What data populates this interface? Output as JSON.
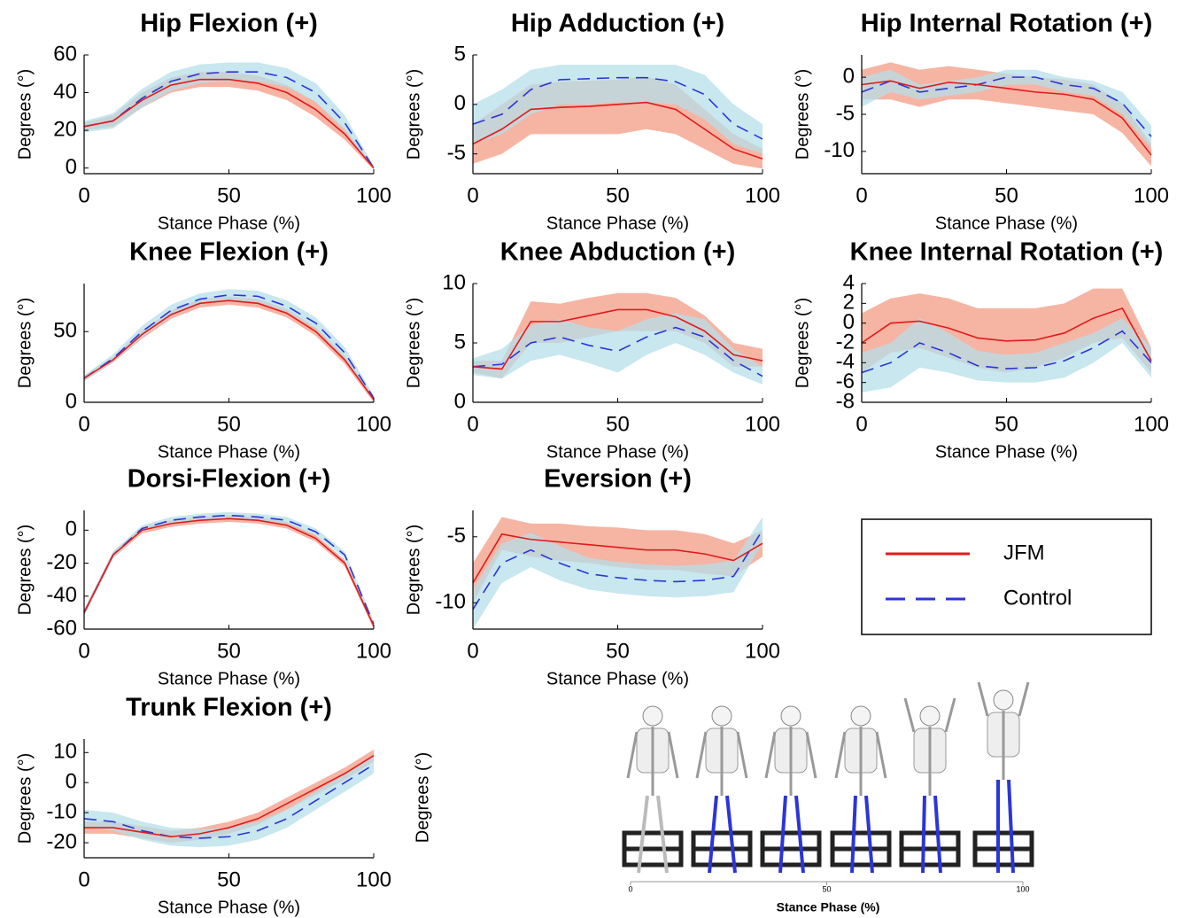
{
  "chart_data": [
    {
      "type": "line",
      "title": "Hip Flexion (+)",
      "xlabel": "Stance Phase (%)",
      "ylabel": "Degrees (°)",
      "x": [
        0,
        10,
        20,
        30,
        40,
        50,
        60,
        70,
        80,
        90,
        100
      ],
      "xlim": [
        0,
        100
      ],
      "xticks": [
        0,
        50,
        100
      ],
      "ylim": [
        -3,
        60
      ],
      "yticks": [
        0,
        20,
        40,
        60
      ],
      "series": [
        {
          "name": "JFM",
          "color": "#e01b1b",
          "band_color": "#f4a793",
          "style": "solid",
          "values": [
            22,
            25,
            36,
            44,
            47,
            47,
            45,
            40,
            31,
            18,
            0
          ],
          "lower": [
            20,
            22,
            32,
            40,
            43,
            43,
            41,
            36,
            27,
            15,
            -1
          ],
          "upper": [
            24,
            28,
            40,
            48,
            51,
            51,
            49,
            44,
            35,
            21,
            1
          ]
        },
        {
          "name": "Control",
          "color": "#2b35d8",
          "band_color": "#b5dfe9",
          "style": "dashed",
          "values": [
            22,
            25,
            37,
            46,
            50,
            51,
            51,
            48,
            40,
            24,
            0
          ],
          "lower": [
            19,
            21,
            32,
            41,
            45,
            46,
            46,
            43,
            35,
            20,
            -1
          ],
          "upper": [
            25,
            29,
            42,
            51,
            55,
            56,
            56,
            53,
            45,
            28,
            1
          ]
        }
      ]
    },
    {
      "type": "line",
      "title": "Hip Adduction (+)",
      "xlabel": "Stance Phase (%)",
      "ylabel": "Degrees (°)",
      "x": [
        0,
        10,
        20,
        30,
        40,
        50,
        60,
        70,
        80,
        90,
        100
      ],
      "xlim": [
        0,
        100
      ],
      "xticks": [
        0,
        50,
        100
      ],
      "ylim": [
        -7,
        5
      ],
      "yticks": [
        -5,
        0,
        5
      ],
      "series": [
        {
          "name": "JFM",
          "color": "#e01b1b",
          "band_color": "#f4a793",
          "style": "solid",
          "values": [
            -4,
            -2.5,
            -0.5,
            -0.3,
            -0.2,
            0,
            0.2,
            -0.5,
            -2.5,
            -4.5,
            -5.5
          ],
          "lower": [
            -6,
            -5,
            -3,
            -3,
            -3,
            -3,
            -2.5,
            -3,
            -4.5,
            -6,
            -6.5
          ],
          "upper": [
            -2,
            0,
            2,
            2.3,
            2.4,
            2.5,
            2.8,
            2,
            -0.5,
            -3,
            -4.5
          ]
        },
        {
          "name": "Control",
          "color": "#2b35d8",
          "band_color": "#b5dfe9",
          "style": "dashed",
          "values": [
            -2,
            -1,
            1.5,
            2.5,
            2.6,
            2.7,
            2.7,
            2.3,
            1,
            -2,
            -3.5
          ],
          "lower": [
            -4,
            -3,
            -1,
            0,
            0,
            0.2,
            0.2,
            0,
            -1.5,
            -4,
            -5
          ],
          "upper": [
            0,
            1.5,
            3.5,
            4,
            4,
            4,
            4,
            4,
            3,
            0,
            -2
          ]
        }
      ]
    },
    {
      "type": "line",
      "title": "Hip Internal Rotation (+)",
      "xlabel": "Stance Phase (%)",
      "ylabel": "Degrees (°)",
      "x": [
        0,
        10,
        20,
        30,
        40,
        50,
        60,
        70,
        80,
        90,
        100
      ],
      "xlim": [
        0,
        100
      ],
      "xticks": [
        0,
        50,
        100
      ],
      "ylim": [
        -13,
        3
      ],
      "yticks": [
        -10,
        -5,
        0
      ],
      "series": [
        {
          "name": "JFM",
          "color": "#e01b1b",
          "band_color": "#f4a793",
          "style": "solid",
          "values": [
            -1,
            -0.5,
            -1.5,
            -0.7,
            -1,
            -1.5,
            -2,
            -2.3,
            -3,
            -5.5,
            -10.5
          ],
          "lower": [
            -3,
            -3,
            -4,
            -3,
            -3,
            -3.5,
            -4,
            -4.5,
            -5,
            -7.5,
            -12
          ],
          "upper": [
            1,
            2,
            1,
            1.5,
            1,
            0.5,
            0,
            -0.3,
            -1,
            -3.5,
            -9
          ]
        },
        {
          "name": "Control",
          "color": "#2b35d8",
          "band_color": "#b5dfe9",
          "style": "dashed",
          "values": [
            -2,
            -0.5,
            -2,
            -1.5,
            -1,
            0,
            0,
            -1,
            -1.5,
            -3.5,
            -8
          ],
          "lower": [
            -4,
            -2,
            -3,
            -2.5,
            -2,
            -1,
            -1,
            -2,
            -2.5,
            -5,
            -9.5
          ],
          "upper": [
            0,
            1,
            -1,
            -0.5,
            0,
            1,
            1,
            0,
            -0.5,
            -2,
            -6.5
          ]
        }
      ]
    },
    {
      "type": "line",
      "title": "Knee Flexion (+)",
      "xlabel": "Stance Phase (%)",
      "ylabel": "Degrees (°)",
      "x": [
        0,
        10,
        20,
        30,
        40,
        50,
        60,
        70,
        80,
        90,
        100
      ],
      "xlim": [
        0,
        100
      ],
      "xticks": [
        0,
        50,
        100
      ],
      "ylim": [
        0,
        84
      ],
      "yticks": [
        0,
        50
      ],
      "series": [
        {
          "name": "JFM",
          "color": "#e01b1b",
          "band_color": "#f4a793",
          "style": "solid",
          "values": [
            17,
            30,
            48,
            62,
            70,
            72,
            70,
            63,
            50,
            30,
            2
          ],
          "lower": [
            15,
            28,
            45,
            59,
            67,
            69,
            67,
            60,
            47,
            27,
            0
          ],
          "upper": [
            19,
            32,
            51,
            65,
            73,
            75,
            73,
            66,
            53,
            33,
            4
          ]
        },
        {
          "name": "Control",
          "color": "#2b35d8",
          "band_color": "#b5dfe9",
          "style": "dashed",
          "values": [
            17,
            31,
            50,
            65,
            73,
            76,
            75,
            68,
            56,
            35,
            3
          ],
          "lower": [
            15,
            28,
            46,
            61,
            69,
            72,
            71,
            64,
            52,
            31,
            1
          ],
          "upper": [
            19,
            34,
            54,
            69,
            77,
            80,
            79,
            72,
            60,
            39,
            5
          ]
        }
      ]
    },
    {
      "type": "line",
      "title": "Knee Abduction (+)",
      "xlabel": "Stance Phase (%)",
      "ylabel": "Degrees (°)",
      "x": [
        0,
        10,
        20,
        30,
        40,
        50,
        60,
        70,
        80,
        90,
        100
      ],
      "xlim": [
        0,
        100
      ],
      "xticks": [
        0,
        50,
        100
      ],
      "ylim": [
        0,
        10
      ],
      "yticks": [
        0,
        5,
        10
      ],
      "series": [
        {
          "name": "JFM",
          "color": "#e01b1b",
          "band_color": "#f4a793",
          "style": "solid",
          "values": [
            3,
            2.8,
            6.8,
            6.8,
            7.3,
            7.8,
            7.8,
            7.2,
            6,
            4,
            3.5
          ],
          "lower": [
            2.5,
            2,
            5,
            5,
            5.5,
            6,
            6,
            6,
            5,
            3,
            3
          ],
          "upper": [
            3.5,
            3.5,
            8.5,
            8.3,
            8.8,
            9.2,
            9.2,
            8.8,
            7.3,
            5,
            4.5
          ]
        },
        {
          "name": "Control",
          "color": "#2b35d8",
          "band_color": "#b5dfe9",
          "style": "dashed",
          "values": [
            3,
            3.2,
            5,
            5.5,
            4.8,
            4.3,
            5.5,
            6.3,
            5.5,
            3.5,
            2.2
          ],
          "lower": [
            2.3,
            2,
            3.5,
            4,
            3.3,
            2.5,
            4,
            5,
            4,
            2.5,
            1.5
          ],
          "upper": [
            3.7,
            4.5,
            6.5,
            7,
            6.3,
            6,
            7,
            7.5,
            7,
            4.5,
            3
          ]
        }
      ]
    },
    {
      "type": "line",
      "title": "Knee Internal Rotation (+)",
      "xlabel": "Stance Phase (%)",
      "ylabel": "Degrees (°)",
      "x": [
        0,
        10,
        20,
        30,
        40,
        50,
        60,
        70,
        80,
        90,
        100
      ],
      "xlim": [
        0,
        100
      ],
      "xticks": [
        0,
        50,
        100
      ],
      "ylim": [
        -8,
        4
      ],
      "yticks": [
        -8,
        -6,
        -4,
        -2,
        0,
        2,
        4
      ],
      "series": [
        {
          "name": "JFM",
          "color": "#e01b1b",
          "band_color": "#f4a793",
          "style": "solid",
          "values": [
            -2,
            0,
            0.2,
            -0.5,
            -1.5,
            -1.8,
            -1.7,
            -1,
            0.5,
            1.5,
            -3.8
          ],
          "lower": [
            -5,
            -3,
            -2.5,
            -3.5,
            -4.5,
            -5,
            -4.5,
            -3.5,
            -2,
            -1.5,
            -5
          ],
          "upper": [
            1,
            2.5,
            3,
            2.5,
            1.5,
            1.5,
            1.5,
            2,
            3.5,
            3.5,
            -2.5
          ]
        },
        {
          "name": "Control",
          "color": "#2b35d8",
          "band_color": "#b5dfe9",
          "style": "dashed",
          "values": [
            -5,
            -4,
            -2,
            -3,
            -4.3,
            -4.6,
            -4.5,
            -3.8,
            -2.5,
            -0.8,
            -4
          ],
          "lower": [
            -7,
            -6.5,
            -4.5,
            -5,
            -5.8,
            -6,
            -6,
            -5.5,
            -4,
            -2,
            -5.5
          ],
          "upper": [
            -3,
            -2,
            0.5,
            -1,
            -2.8,
            -3.2,
            -3,
            -2,
            -1,
            0.5,
            -2.5
          ]
        }
      ]
    },
    {
      "type": "line",
      "title": "Dorsi-Flexion (+)",
      "xlabel": "Stance Phase (%)",
      "ylabel": "Degrees (°)",
      "x": [
        0,
        10,
        20,
        30,
        40,
        50,
        60,
        70,
        80,
        90,
        100
      ],
      "xlim": [
        0,
        100
      ],
      "xticks": [
        0,
        50,
        100
      ],
      "ylim": [
        -60,
        12
      ],
      "yticks": [
        -60,
        -40,
        -20,
        0
      ],
      "series": [
        {
          "name": "JFM",
          "color": "#e01b1b",
          "band_color": "#f4a793",
          "style": "solid",
          "values": [
            -50,
            -15,
            0,
            4,
            6,
            7,
            6,
            3,
            -5,
            -20,
            -58
          ],
          "lower": [
            -52,
            -17,
            -2,
            2,
            4,
            5,
            4,
            1,
            -7,
            -22,
            -60
          ],
          "upper": [
            -48,
            -13,
            2,
            6,
            8,
            9,
            8,
            5,
            -3,
            -18,
            -56
          ]
        },
        {
          "name": "Control",
          "color": "#2b35d8",
          "band_color": "#b5dfe9",
          "style": "dashed",
          "values": [
            -50,
            -15,
            1,
            6,
            8,
            9,
            8,
            6,
            -1,
            -15,
            -57
          ],
          "lower": [
            -52,
            -17,
            -1,
            4,
            6,
            7,
            6,
            4,
            -3,
            -17,
            -59
          ],
          "upper": [
            -48,
            -13,
            3,
            8,
            10,
            11,
            10,
            8,
            1,
            -13,
            -55
          ]
        }
      ]
    },
    {
      "type": "line",
      "title": "Eversion (+)",
      "xlabel": "Stance Phase (%)",
      "ylabel": "Degrees (°)",
      "x": [
        0,
        10,
        20,
        30,
        40,
        50,
        60,
        70,
        80,
        90,
        100
      ],
      "xlim": [
        0,
        100
      ],
      "xticks": [
        0,
        50,
        100
      ],
      "ylim": [
        -12,
        -3
      ],
      "yticks": [
        -10,
        -5
      ],
      "series": [
        {
          "name": "JFM",
          "color": "#e01b1b",
          "band_color": "#f4a793",
          "style": "solid",
          "values": [
            -8.5,
            -4.8,
            -5.2,
            -5.4,
            -5.6,
            -5.8,
            -6,
            -6,
            -6.3,
            -6.8,
            -5.5
          ],
          "lower": [
            -10,
            -6,
            -6.5,
            -6.8,
            -7,
            -7.3,
            -7.5,
            -7.5,
            -7.8,
            -8,
            -6.5
          ],
          "upper": [
            -7,
            -3.5,
            -4,
            -4,
            -4.2,
            -4.3,
            -4.5,
            -4.5,
            -4.8,
            -5.5,
            -4.5
          ]
        },
        {
          "name": "Control",
          "color": "#2b35d8",
          "band_color": "#b5dfe9",
          "style": "dashed",
          "values": [
            -10.5,
            -7,
            -6,
            -7,
            -7.8,
            -8.1,
            -8.3,
            -8.4,
            -8.3,
            -8,
            -4.5
          ],
          "lower": [
            -12,
            -8.5,
            -7.3,
            -8.3,
            -9,
            -9.3,
            -9.5,
            -9.6,
            -9.5,
            -9.2,
            -5.5
          ],
          "upper": [
            -9,
            -5.5,
            -4.7,
            -5.7,
            -6.6,
            -6.9,
            -7.1,
            -7.2,
            -7.1,
            -6.8,
            -3.5
          ]
        }
      ]
    },
    {
      "type": "line",
      "title": "Trunk Flexion (+)",
      "xlabel": "Stance Phase (%)",
      "ylabel": "Degrees (°)",
      "x": [
        0,
        10,
        20,
        30,
        40,
        50,
        60,
        70,
        80,
        90,
        100
      ],
      "xlim": [
        0,
        100
      ],
      "xticks": [
        0,
        50,
        100
      ],
      "ylim": [
        -25,
        14.5
      ],
      "yticks": [
        -20,
        -10,
        0,
        10
      ],
      "series": [
        {
          "name": "JFM",
          "color": "#e01b1b",
          "band_color": "#f4a793",
          "style": "solid",
          "values": [
            -15,
            -15,
            -16.5,
            -18,
            -17,
            -15,
            -12,
            -7,
            -2,
            3,
            9
          ],
          "lower": [
            -17,
            -17,
            -18.5,
            -20,
            -19,
            -17,
            -14,
            -9,
            -4,
            1,
            7
          ],
          "upper": [
            -13,
            -13,
            -14.5,
            -16,
            -15,
            -13,
            -10,
            -5,
            0,
            5,
            11
          ]
        },
        {
          "name": "Control",
          "color": "#2b35d8",
          "band_color": "#b5dfe9",
          "style": "dashed",
          "values": [
            -12,
            -13,
            -16,
            -18,
            -18.5,
            -18,
            -16,
            -12,
            -6,
            0,
            6
          ],
          "lower": [
            -15,
            -16,
            -19,
            -21,
            -21.5,
            -21,
            -19,
            -15,
            -9,
            -3,
            3
          ],
          "upper": [
            -9,
            -10,
            -13,
            -15,
            -15.5,
            -15,
            -13,
            -9,
            -3,
            3,
            9
          ]
        }
      ]
    },
    {
      "type": "image",
      "ylabel": "Degrees (°)",
      "xlabel": "Stance Phase (%)",
      "xlim": [
        0,
        100
      ],
      "xticks": [
        0,
        50,
        100
      ]
    }
  ]
}
